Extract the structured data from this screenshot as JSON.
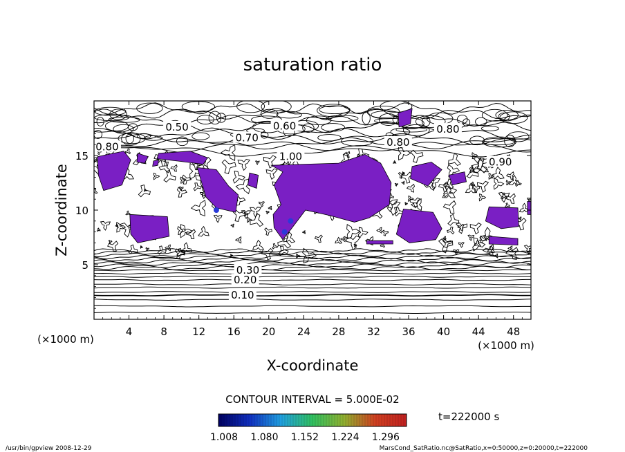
{
  "chart_data": {
    "type": "contour",
    "title": "saturation ratio",
    "xlabel": "X-coordinate",
    "ylabel": "Z-coordinate",
    "x_unit": "(×1000 m)",
    "y_unit": "(×1000 m)",
    "xlim": [
      0,
      50
    ],
    "ylim": [
      0,
      20
    ],
    "x_ticks": [
      4,
      8,
      12,
      16,
      20,
      24,
      28,
      32,
      36,
      40,
      44,
      48
    ],
    "y_ticks": [
      5,
      10,
      15
    ],
    "contour_interval_text": "CONTOUR INTERVAL = 5.000E-02",
    "time_text": "t=222000 s",
    "colorbar": {
      "tick_labels": [
        "1.008",
        "1.080",
        "1.152",
        "1.224",
        "1.296"
      ],
      "min": 1.008,
      "max": 1.296,
      "colors": [
        "#000060",
        "#1030c0",
        "#20a0e0",
        "#30c060",
        "#90b030",
        "#d04020",
        "#c02020"
      ]
    },
    "shading_color": "#7a1fc4",
    "contour_labels": [
      {
        "text": "0.50",
        "x": 9.5,
        "z": 17.6
      },
      {
        "text": "0.60",
        "x": 21.8,
        "z": 17.7
      },
      {
        "text": "0.80",
        "x": 40.5,
        "z": 17.4
      },
      {
        "text": "0.70",
        "x": 17.5,
        "z": 16.6
      },
      {
        "text": "0.80",
        "x": 1.5,
        "z": 15.8
      },
      {
        "text": "0.80",
        "x": 34.8,
        "z": 16.2
      },
      {
        "text": "1.00",
        "x": 22.5,
        "z": 14.9
      },
      {
        "text": "0.90",
        "x": 46.5,
        "z": 14.4
      },
      {
        "text": "0.30",
        "x": 17.6,
        "z": 4.5
      },
      {
        "text": "0.20",
        "x": 17.3,
        "z": 3.6
      },
      {
        "text": "0.10",
        "x": 17.0,
        "z": 2.2
      }
    ],
    "grid": false
  },
  "footer": {
    "left": "/usr/bin/gpview   2008-12-29",
    "right": "MarsCond_SatRatio.nc@SatRatio,x=0:50000,z=0:20000,t=222000"
  }
}
